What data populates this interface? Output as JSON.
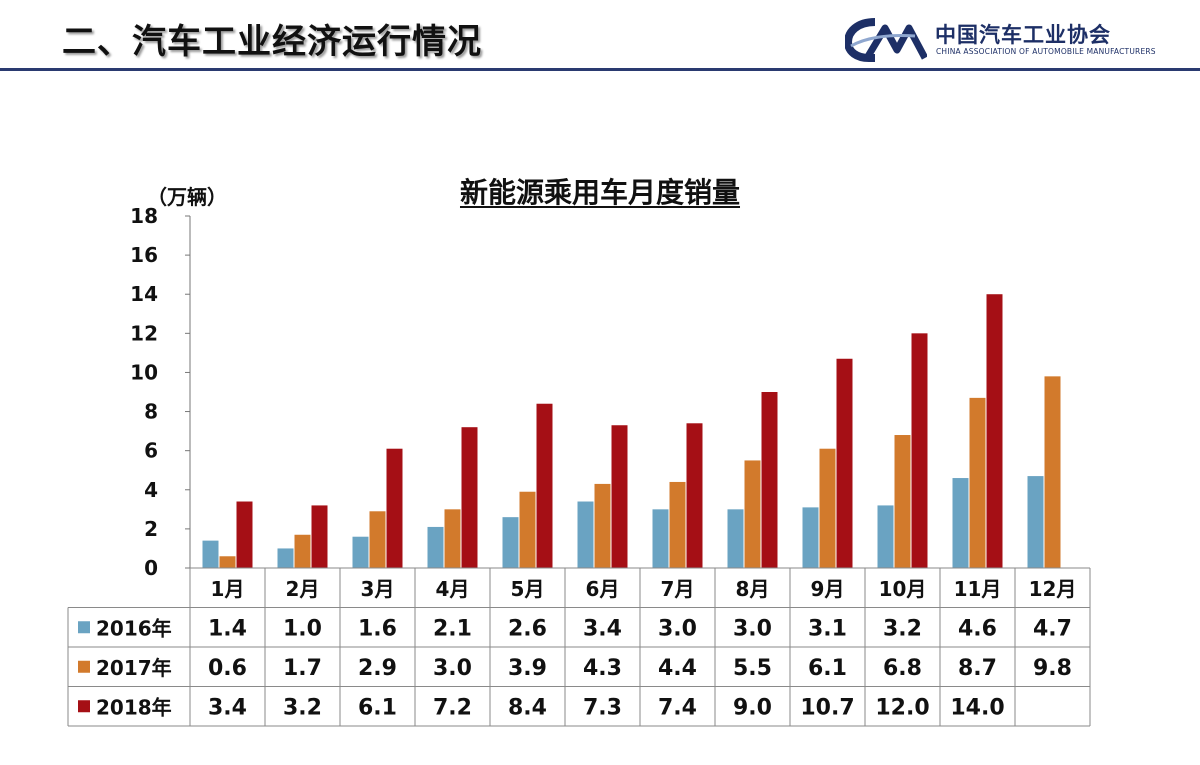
{
  "header": {
    "title": "二、汽车工业经济运行情况",
    "logo_cn": "中国汽车工业协会",
    "logo_en": "CHINA ASSOCIATION OF AUTOMOBILE MANUFACTURERS"
  },
  "colors": {
    "accent": "#2a3a70",
    "series_2016": "#6aa3c2",
    "series_2017": "#d27a2c",
    "series_2018": "#a50f15"
  },
  "chart_data": {
    "type": "bar",
    "title": "新能源乘用车月度销量",
    "unit": "（万辆）",
    "ylim": [
      0,
      18
    ],
    "yticks": [
      0,
      2,
      4,
      6,
      8,
      10,
      12,
      14,
      16,
      18
    ],
    "grid": false,
    "legend": "data-table",
    "categories": [
      "1月",
      "2月",
      "3月",
      "4月",
      "5月",
      "6月",
      "7月",
      "8月",
      "9月",
      "10月",
      "11月",
      "12月"
    ],
    "series": [
      {
        "name": "2016年",
        "color": "#6aa3c2",
        "values": [
          1.4,
          1.0,
          1.6,
          2.1,
          2.6,
          3.4,
          3.0,
          3.0,
          3.1,
          3.2,
          4.6,
          4.7
        ]
      },
      {
        "name": "2017年",
        "color": "#d27a2c",
        "values": [
          0.6,
          1.7,
          2.9,
          3.0,
          3.9,
          4.3,
          4.4,
          5.5,
          6.1,
          6.8,
          8.7,
          9.8
        ]
      },
      {
        "name": "2018年",
        "color": "#a50f15",
        "values": [
          3.4,
          3.2,
          6.1,
          7.2,
          8.4,
          7.3,
          7.4,
          9.0,
          10.7,
          12.0,
          14.0,
          null
        ]
      }
    ]
  }
}
